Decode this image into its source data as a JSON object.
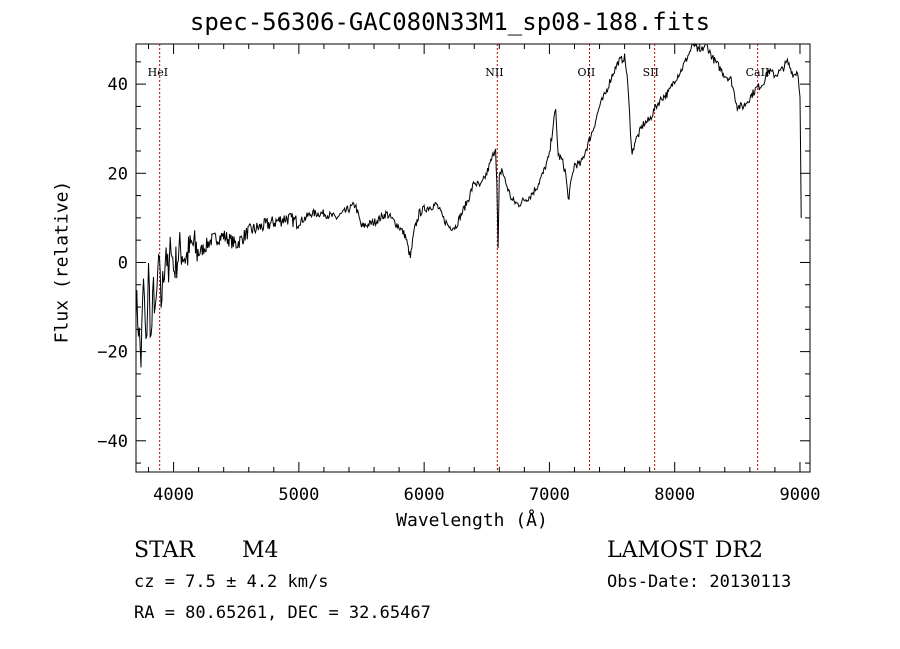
{
  "chart_data": {
    "type": "line",
    "title": "spec-56306-GAC080N33M1_sp08-188.fits",
    "xlabel": "Wavelength (Å)",
    "ylabel": "Flux (relative)",
    "xlim": [
      3700,
      9080
    ],
    "ylim": [
      -47,
      49
    ],
    "x_ticks": [
      4000,
      5000,
      6000,
      7000,
      8000,
      9000
    ],
    "y_ticks": [
      -40,
      -20,
      0,
      20,
      40
    ],
    "grid": false,
    "line_color": "#000000",
    "lines_color": "#c00000",
    "series": [
      {
        "points": [
          [
            3700,
            -8
          ],
          [
            3720,
            -14
          ],
          [
            3740,
            -22
          ],
          [
            3760,
            -4
          ],
          [
            3780,
            -20
          ],
          [
            3800,
            -2
          ],
          [
            3820,
            -18
          ],
          [
            3840,
            -6
          ],
          [
            3860,
            -12
          ],
          [
            3880,
            1
          ],
          [
            3900,
            -9
          ],
          [
            3920,
            -3
          ],
          [
            3940,
            4
          ],
          [
            3960,
            -5
          ],
          [
            3980,
            6
          ],
          [
            4000,
            -2
          ],
          [
            4050,
            3
          ],
          [
            4100,
            1
          ],
          [
            4150,
            4
          ],
          [
            4200,
            2
          ],
          [
            4300,
            5
          ],
          [
            4400,
            6
          ],
          [
            4500,
            4
          ],
          [
            4600,
            7
          ],
          [
            4700,
            8
          ],
          [
            4800,
            9
          ],
          [
            4900,
            10
          ],
          [
            5000,
            9
          ],
          [
            5100,
            11
          ],
          [
            5200,
            11
          ],
          [
            5300,
            10
          ],
          [
            5400,
            12
          ],
          [
            5450,
            13
          ],
          [
            5500,
            8
          ],
          [
            5600,
            9
          ],
          [
            5700,
            11
          ],
          [
            5800,
            8
          ],
          [
            5850,
            6
          ],
          [
            5890,
            1
          ],
          [
            5920,
            7
          ],
          [
            5960,
            11
          ],
          [
            6000,
            12
          ],
          [
            6100,
            13
          ],
          [
            6150,
            10
          ],
          [
            6200,
            8
          ],
          [
            6250,
            8
          ],
          [
            6300,
            11
          ],
          [
            6350,
            14
          ],
          [
            6400,
            18
          ],
          [
            6450,
            17
          ],
          [
            6500,
            20
          ],
          [
            6550,
            24
          ],
          [
            6570,
            26
          ],
          [
            6580,
            18
          ],
          [
            6590,
            3
          ],
          [
            6600,
            19
          ],
          [
            6620,
            21
          ],
          [
            6650,
            18
          ],
          [
            6700,
            14
          ],
          [
            6750,
            13
          ],
          [
            6800,
            14
          ],
          [
            6850,
            15
          ],
          [
            6900,
            17
          ],
          [
            6950,
            20
          ],
          [
            7000,
            24
          ],
          [
            7030,
            31
          ],
          [
            7050,
            34
          ],
          [
            7070,
            24
          ],
          [
            7100,
            23
          ],
          [
            7130,
            20
          ],
          [
            7150,
            14
          ],
          [
            7180,
            19
          ],
          [
            7200,
            22
          ],
          [
            7250,
            22
          ],
          [
            7300,
            26
          ],
          [
            7350,
            30
          ],
          [
            7400,
            35
          ],
          [
            7450,
            38
          ],
          [
            7500,
            42
          ],
          [
            7550,
            45
          ],
          [
            7600,
            46
          ],
          [
            7620,
            42
          ],
          [
            7640,
            33
          ],
          [
            7660,
            24
          ],
          [
            7680,
            27
          ],
          [
            7700,
            28
          ],
          [
            7750,
            31
          ],
          [
            7800,
            32
          ],
          [
            7850,
            35
          ],
          [
            7900,
            37
          ],
          [
            7950,
            38
          ],
          [
            8000,
            41
          ],
          [
            8050,
            43
          ],
          [
            8100,
            46
          ],
          [
            8150,
            49
          ],
          [
            8200,
            47
          ],
          [
            8250,
            49
          ],
          [
            8300,
            46
          ],
          [
            8350,
            44
          ],
          [
            8400,
            42
          ],
          [
            8450,
            41
          ],
          [
            8500,
            35
          ],
          [
            8550,
            35
          ],
          [
            8600,
            37
          ],
          [
            8650,
            39
          ],
          [
            8700,
            40
          ],
          [
            8750,
            43
          ],
          [
            8800,
            42
          ],
          [
            8850,
            43
          ],
          [
            8900,
            45
          ],
          [
            8950,
            42
          ],
          [
            8980,
            43
          ],
          [
            9000,
            38
          ],
          [
            9010,
            10
          ]
        ]
      }
    ],
    "line_markers": [
      {
        "label": "HeI",
        "x": 3889
      },
      {
        "label": "NII",
        "x": 6584
      },
      {
        "label": "OII",
        "x": 7320
      },
      {
        "label": "SII",
        "x": 7840
      },
      {
        "label": "CaII",
        "x": 8662
      }
    ]
  },
  "info": {
    "object_class": "STAR",
    "object_subclass": "M4",
    "survey": "LAMOST DR2",
    "cz": "cz = 7.5 ± 4.2 km/s",
    "obs_date": "Obs-Date: 20130113",
    "coords": "RA =  80.65261, DEC =  32.65467"
  }
}
